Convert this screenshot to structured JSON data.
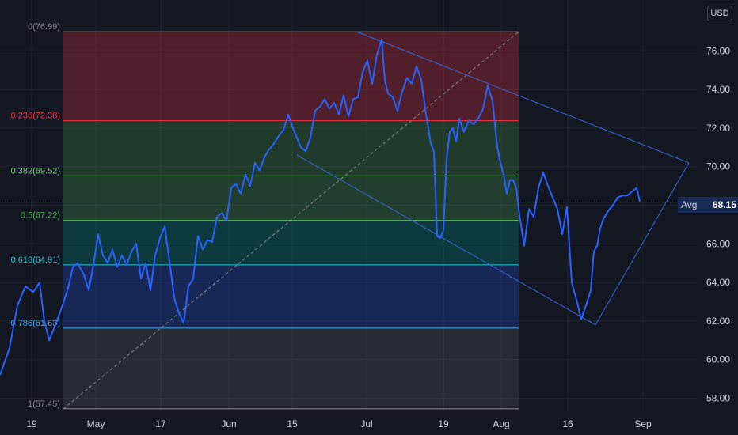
{
  "currency": "USD",
  "avg": {
    "label": "Avg",
    "value": "68.15"
  },
  "colors": {
    "background": "#131722",
    "price_line": "#2962ff",
    "channel": "#3d67d6"
  },
  "chart_data": {
    "type": "line",
    "ylim": [
      57,
      78
    ],
    "yticks": [
      "58.00",
      "60.00",
      "62.00",
      "64.00",
      "66.00",
      "68.00",
      "70.00",
      "72.00",
      "74.00",
      "76.00"
    ],
    "xticks": [
      "19",
      "May",
      "17",
      "Jun",
      "15",
      "Jul",
      "19",
      "Aug",
      "16",
      "Sep"
    ],
    "fib_levels": [
      {
        "ratio": 0,
        "price": 76.99,
        "label": "0(76.99)",
        "color": "#8a8a8a"
      },
      {
        "ratio": 0.236,
        "price": 72.38,
        "label": "0.236(72.38)",
        "color": "#f23645"
      },
      {
        "ratio": 0.382,
        "price": 69.52,
        "label": "0.382(69.52)",
        "color": "#81c784"
      },
      {
        "ratio": 0.5,
        "price": 67.22,
        "label": "0.5(67.22)",
        "color": "#4caf50"
      },
      {
        "ratio": 0.618,
        "price": 64.91,
        "label": "0.618(64.91)",
        "color": "#26c6da"
      },
      {
        "ratio": 0.786,
        "price": 61.63,
        "label": "0.786(61.63)",
        "color": "#42a5f5"
      },
      {
        "ratio": 1,
        "price": 57.45,
        "label": "1(57.45)",
        "color": "#8a8a8a"
      }
    ],
    "series": [
      {
        "x": [
          0,
          12,
          22,
          32,
          42,
          50,
          56,
          62,
          70,
          78,
          86,
          92,
          98,
          106,
          112,
          118,
          124,
          130,
          136,
          142,
          148,
          154,
          160,
          166,
          172,
          178,
          184,
          190,
          196,
          202,
          208,
          214,
          220,
          226,
          232,
          238,
          244,
          250,
          256,
          262,
          268,
          274,
          280,
          286,
          292,
          298,
          304,
          310,
          316,
          322,
          328,
          334,
          340,
          346,
          352,
          358,
          364,
          370,
          374,
          380,
          386,
          392,
          398,
          404,
          410,
          416,
          422,
          428,
          434,
          440,
          446,
          452,
          458,
          464,
          470,
          476,
          482,
          486,
          490,
          496,
          502,
          508,
          514,
          520,
          526,
          532,
          538,
          544,
          548,
          552,
          556,
          560,
          564,
          568,
          572,
          576,
          580,
          586,
          592,
          598,
          604,
          610,
          616,
          622,
          628,
          632,
          636,
          640,
          644,
          648,
          652,
          656,
          662,
          668,
          674,
          680,
          686,
          692,
          698,
          704,
          710,
          716,
          722,
          728,
          734,
          740,
          746,
          750,
          754,
          758,
          762,
          768,
          774,
          780,
          786,
          792,
          798,
          804,
          808
        ],
        "y": [
          59.2,
          60.6,
          62.8,
          63.8,
          63.5,
          64.0,
          62.0,
          61.0,
          61.8,
          62.7,
          63.7,
          64.8,
          65.0,
          64.4,
          63.6,
          64.9,
          66.5,
          65.4,
          65.0,
          65.7,
          64.8,
          65.4,
          64.9,
          65.6,
          66.0,
          64.2,
          65.0,
          63.6,
          65.4,
          66.3,
          66.9,
          65.1,
          63.2,
          62.4,
          61.9,
          63.8,
          64.2,
          66.4,
          65.7,
          66.2,
          66.1,
          67.4,
          67.6,
          67.2,
          68.9,
          69.1,
          68.6,
          69.6,
          69.0,
          70.2,
          69.8,
          70.5,
          70.9,
          71.2,
          71.6,
          71.9,
          72.7,
          72.0,
          71.6,
          71.0,
          70.8,
          71.5,
          72.9,
          73.1,
          73.5,
          73.0,
          73.3,
          72.7,
          73.7,
          72.6,
          73.5,
          73.6,
          74.9,
          75.5,
          74.3,
          75.8,
          76.6,
          74.5,
          73.8,
          73.6,
          72.9,
          73.9,
          74.6,
          74.3,
          75.2,
          74.5,
          72.7,
          71.2,
          70.8,
          66.4,
          66.3,
          66.7,
          70.4,
          71.8,
          72.0,
          71.3,
          72.5,
          71.8,
          72.4,
          72.2,
          72.5,
          73.0,
          74.2,
          73.4,
          71.0,
          70.2,
          69.6,
          68.6,
          69.3,
          69.3,
          68.9,
          67.5,
          65.9,
          67.8,
          67.4,
          68.9,
          69.7,
          69.0,
          68.4,
          67.8,
          66.5,
          67.9,
          64.0,
          63.1,
          62.1,
          62.8,
          63.6,
          65.6,
          65.9,
          66.8,
          67.3,
          67.7,
          68.0,
          68.4,
          68.5,
          68.5,
          68.7,
          68.9,
          68.2
        ]
      }
    ]
  }
}
